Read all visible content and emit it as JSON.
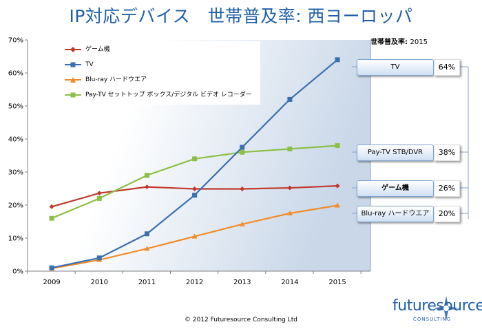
{
  "chart_data": {
    "type": "line",
    "title": "IP対応デバイス　世帯普及率: 西ヨーロッパ",
    "xlabel": "",
    "ylabel": "",
    "categories": [
      "2009",
      "2010",
      "2011",
      "2012",
      "2013",
      "2014",
      "2015"
    ],
    "ylim": [
      0,
      70
    ],
    "ytick_values": [
      0,
      10,
      20,
      30,
      40,
      50,
      60,
      70
    ],
    "ytick_labels": [
      "0%",
      "10%",
      "20%",
      "30%",
      "40%",
      "50%",
      "60%",
      "70%"
    ],
    "grid": false,
    "legend_position": "top-left",
    "series": [
      {
        "name": "ゲーム機",
        "color": "#c0392b",
        "marker": "diamond",
        "values": [
          19.5,
          23.6,
          25.5,
          24.9,
          24.9,
          25.2,
          25.8
        ]
      },
      {
        "name": "TV",
        "color": "#3a6fb0",
        "marker": "square",
        "values": [
          1.0,
          4.0,
          11.3,
          23.0,
          37.5,
          52.0,
          64.0
        ]
      },
      {
        "name": "Blu-ray ハードウエア",
        "color": "#f28c28",
        "marker": "triangle",
        "values": [
          0.8,
          3.4,
          6.8,
          10.5,
          14.2,
          17.5,
          19.9
        ]
      },
      {
        "name": "Pay-TV セットトップ ボックス/デジタル ビデオ レコーダー",
        "color": "#8cbf46",
        "marker": "square",
        "values": [
          16.0,
          22.0,
          29.0,
          34.0,
          36.0,
          37.0,
          38.0
        ]
      }
    ]
  },
  "callouts": {
    "title_main": "世帯普及率:",
    "title_year": "2015",
    "items": [
      {
        "label": "TV",
        "value": "64%",
        "bold": false
      },
      {
        "label": "Pay-TV STB/DVR",
        "value": "38%",
        "bold": false
      },
      {
        "label": "ゲーム機",
        "value": "26%",
        "bold": true
      },
      {
        "label": "Blu-ray ハードウエア",
        "value": "20%",
        "bold": false
      }
    ]
  },
  "footer": {
    "copyright": "© 2012 Futuresource Consulting Ltd",
    "logo_main": "futuresource",
    "logo_sub": "CONSULTING"
  },
  "colors": {
    "axis": "#808080",
    "plot_gradient_start": "#ffffff",
    "plot_gradient_end": "#c9d7e8",
    "bracket": "#7fa3cc"
  }
}
